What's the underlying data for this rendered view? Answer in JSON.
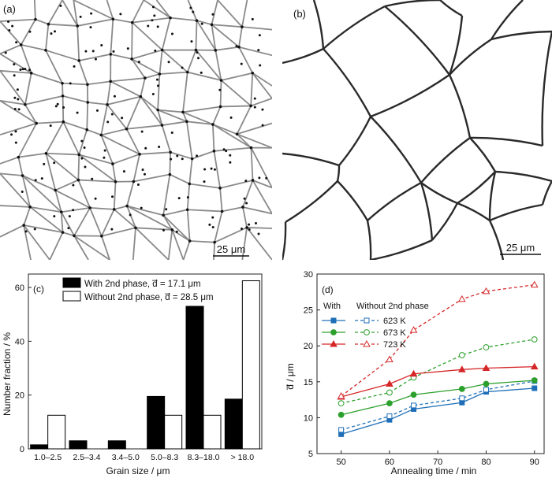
{
  "micrographs": {
    "a": {
      "panel_label": "(a)",
      "scale_bar": "25 μm"
    },
    "b": {
      "panel_label": "(b)",
      "scale_bar": "25 μm"
    }
  },
  "chart_data": [
    {
      "id": "c",
      "type": "bar",
      "panel_label": "(c)",
      "xlabel": "Grain size / μm",
      "ylabel": "Number fraction / %",
      "ylim": [
        0,
        65
      ],
      "yticks": [
        0,
        20,
        40,
        60
      ],
      "categories": [
        "1.0–2.5",
        "2.5–3.4",
        "3.4–5.0",
        "5.0–8.3",
        "8.3–18.0",
        "> 18.0"
      ],
      "series": [
        {
          "name": "With 2nd phase, d̅ = 17.1 μm",
          "color": "#000000",
          "values": [
            1.5,
            3,
            3,
            19.5,
            53,
            18.5
          ]
        },
        {
          "name": "Without 2nd phase, d̅ = 28.5 μm",
          "color": "#ffffff",
          "values": [
            12.5,
            0,
            0,
            12.5,
            12.5,
            62.5
          ]
        }
      ],
      "legend": "top-left"
    },
    {
      "id": "d",
      "type": "line",
      "panel_label": "(d)",
      "xlabel": "Annealing time / min",
      "ylabel": "d̅ / μm",
      "xlim": [
        45,
        92
      ],
      "ylim": [
        5,
        30
      ],
      "xticks": [
        50,
        60,
        70,
        80,
        90
      ],
      "yticks": [
        5,
        10,
        15,
        20,
        25,
        30
      ],
      "x": [
        50,
        60,
        65,
        75,
        80,
        90
      ],
      "legend_headers": {
        "with": "With",
        "without": "Without 2nd phase"
      },
      "series": [
        {
          "name": "623 K",
          "group": "with",
          "color": "#1f6fb8",
          "marker": "square",
          "values": [
            7.7,
            9.7,
            11.2,
            12.1,
            13.6,
            14.1
          ]
        },
        {
          "name": "623 K",
          "group": "without",
          "color": "#1f6fb8",
          "marker": "square",
          "values": [
            8.3,
            10.2,
            11.7,
            12.7,
            13.9,
            15.1
          ]
        },
        {
          "name": "673 K",
          "group": "with",
          "color": "#2ca02c",
          "marker": "circle",
          "values": [
            10.4,
            12.0,
            13.2,
            14.0,
            14.7,
            15.2
          ]
        },
        {
          "name": "673 K",
          "group": "without",
          "color": "#2ca02c",
          "marker": "circle",
          "values": [
            12.0,
            13.5,
            15.6,
            18.7,
            19.8,
            20.9
          ]
        },
        {
          "name": "723 K",
          "group": "with",
          "color": "#d62728",
          "marker": "triangle",
          "values": [
            12.9,
            14.7,
            16.1,
            16.7,
            16.9,
            17.1
          ]
        },
        {
          "name": "723 K",
          "group": "without",
          "color": "#d62728",
          "marker": "triangle",
          "values": [
            13.0,
            18.1,
            22.2,
            26.5,
            27.6,
            28.5
          ]
        }
      ]
    }
  ]
}
